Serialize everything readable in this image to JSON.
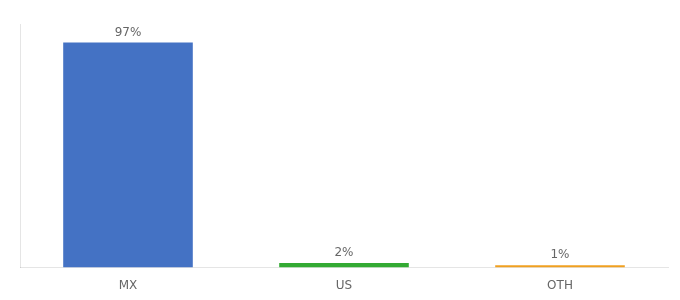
{
  "chart_data": {
    "type": "bar",
    "categories": [
      "MX",
      "US",
      "OTH"
    ],
    "values": [
      97,
      2,
      1
    ],
    "value_labels": [
      "97%",
      "2%",
      "1%"
    ],
    "data_labels": true,
    "colors": [
      "#4472c4",
      "#33aa33",
      "#f0a020"
    ],
    "ylim": [
      0,
      105
    ],
    "grid": false,
    "tick_labels": "x"
  }
}
